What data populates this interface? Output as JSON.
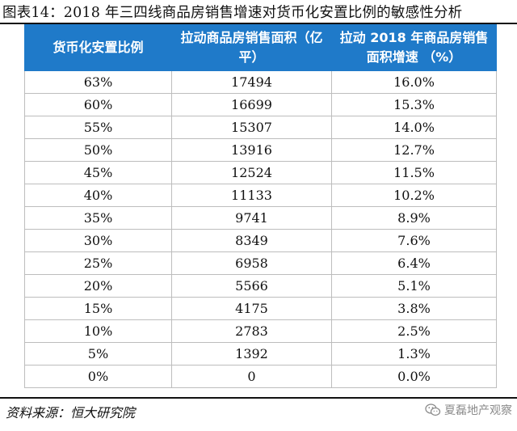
{
  "title": "图表14：2018 年三四线商品房销售增速对货币化安置比例的敏感性分析",
  "table": {
    "headers": [
      "货币化安置比例",
      "拉动商品房销售面积（亿平）",
      "拉动 2018 年商品房销售面积增速 （%）"
    ],
    "rows": [
      [
        "63%",
        "17494",
        "16.0%"
      ],
      [
        "60%",
        "16699",
        "15.3%"
      ],
      [
        "55%",
        "15307",
        "14.0%"
      ],
      [
        "50%",
        "13916",
        "12.7%"
      ],
      [
        "45%",
        "12524",
        "11.5%"
      ],
      [
        "40%",
        "11133",
        "10.2%"
      ],
      [
        "35%",
        "9741",
        "8.9%"
      ],
      [
        "30%",
        "8349",
        "7.6%"
      ],
      [
        "25%",
        "6958",
        "6.4%"
      ],
      [
        "20%",
        "5566",
        "5.1%"
      ],
      [
        "15%",
        "4175",
        "3.8%"
      ],
      [
        "10%",
        "2783",
        "2.5%"
      ],
      [
        "5%",
        "1392",
        "1.3%"
      ],
      [
        "0%",
        "0",
        "0.0%"
      ]
    ]
  },
  "source": "资料来源：恒大研究院",
  "watermark": {
    "text": "夏磊地产观察",
    "icon": "wechat-icon"
  },
  "colors": {
    "header_bg": "#1f7ac9",
    "header_text": "#ffffff",
    "grid": "#bdbdbd"
  }
}
